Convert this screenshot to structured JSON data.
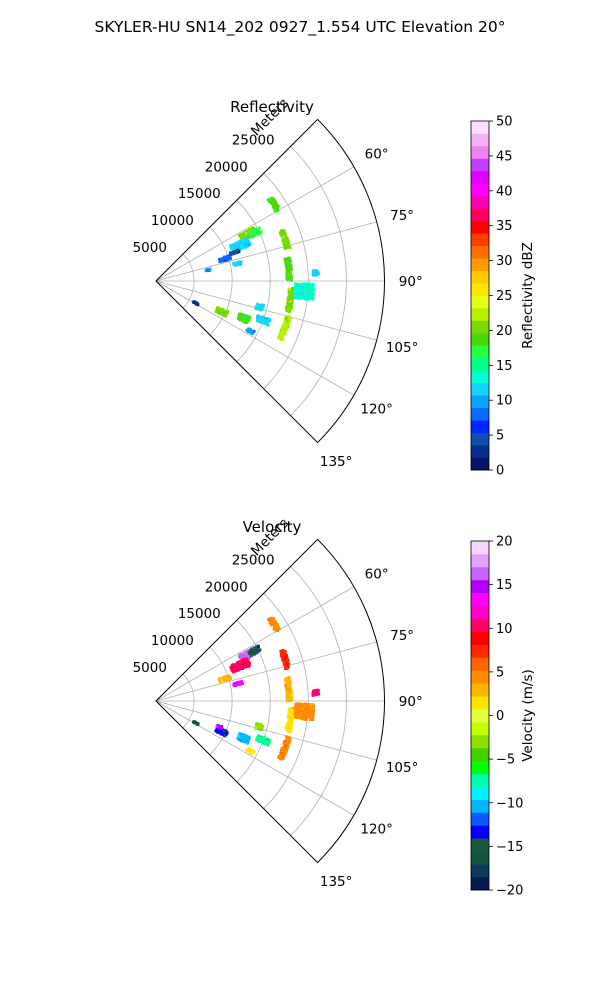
{
  "figure": {
    "title": "SKYLER-HU  SN14_202  0927_1.554 UTC Elevation 20°"
  },
  "chart_data": [
    {
      "type": "heatmap",
      "projection": "polar-sector",
      "title": "Reflectivity",
      "radial_label": "Meters",
      "azimuth_range_deg": [
        45,
        135
      ],
      "radial_range_m": [
        0,
        30000
      ],
      "radial_ticks": [
        5000,
        10000,
        15000,
        20000,
        25000
      ],
      "radial_tick_labels": [
        "5000",
        "10000",
        "15000",
        "20000",
        "25000"
      ],
      "angle_ticks_deg": [
        60,
        75,
        90,
        105,
        120,
        135
      ],
      "angle_tick_labels": [
        "60°",
        "75°",
        "90°",
        "105°",
        "120°",
        "135°"
      ],
      "grid": true,
      "colorbar": {
        "label": "Reflectivity dBZ",
        "min": 0,
        "max": 50,
        "ticks": [
          0,
          5,
          10,
          15,
          20,
          25,
          30,
          35,
          40,
          45,
          50
        ],
        "tick_labels": [
          "0",
          "5",
          "10",
          "15",
          "20",
          "25",
          "30",
          "35",
          "40",
          "45",
          "50"
        ],
        "colormap": "pyart_NWSRef"
      },
      "echoes": [
        {
          "r": 13500,
          "az": 63,
          "dr": 2200,
          "daz": 4,
          "value": 20
        },
        {
          "r": 12000,
          "az": 67,
          "dr": 2500,
          "daz": 5,
          "value": 12
        },
        {
          "r": 14500,
          "az": 64,
          "dr": 1500,
          "daz": 3,
          "value": 17
        },
        {
          "r": 9500,
          "az": 72,
          "dr": 1500,
          "daz": 3,
          "value": 8
        },
        {
          "r": 11000,
          "az": 70,
          "dr": 1200,
          "daz": 2,
          "value": 4
        },
        {
          "r": 11000,
          "az": 78,
          "dr": 1200,
          "daz": 2,
          "value": 12
        },
        {
          "r": 18500,
          "az": 57,
          "dr": 700,
          "daz": 6,
          "value": 18
        },
        {
          "r": 17800,
          "az": 72,
          "dr": 700,
          "daz": 8,
          "value": 20
        },
        {
          "r": 17500,
          "az": 85,
          "dr": 700,
          "daz": 10,
          "value": 18
        },
        {
          "r": 17800,
          "az": 98,
          "dr": 700,
          "daz": 10,
          "value": 20
        },
        {
          "r": 18000,
          "az": 110,
          "dr": 700,
          "daz": 10,
          "value": 22
        },
        {
          "r": 19500,
          "az": 94,
          "dr": 2500,
          "daz": 6,
          "value": 13
        },
        {
          "r": 21000,
          "az": 87,
          "dr": 800,
          "daz": 2,
          "value": 12
        },
        {
          "r": 14000,
          "az": 104,
          "dr": 1000,
          "daz": 3,
          "value": 12
        },
        {
          "r": 9500,
          "az": 115,
          "dr": 1500,
          "daz": 4,
          "value": 20
        },
        {
          "r": 12500,
          "az": 113,
          "dr": 1500,
          "daz": 4,
          "value": 18
        },
        {
          "r": 15000,
          "az": 110,
          "dr": 1800,
          "daz": 3,
          "value": 12
        },
        {
          "r": 14000,
          "az": 118,
          "dr": 1000,
          "daz": 2,
          "value": 10
        },
        {
          "r": 6000,
          "az": 119,
          "dr": 800,
          "daz": 2,
          "value": 2
        },
        {
          "r": 7000,
          "az": 78,
          "dr": 600,
          "daz": 2,
          "value": 10
        }
      ]
    },
    {
      "type": "heatmap",
      "projection": "polar-sector",
      "title": "Velocity",
      "radial_label": "Meters",
      "azimuth_range_deg": [
        45,
        135
      ],
      "radial_range_m": [
        0,
        30000
      ],
      "radial_ticks": [
        5000,
        10000,
        15000,
        20000,
        25000
      ],
      "radial_tick_labels": [
        "5000",
        "10000",
        "15000",
        "20000",
        "25000"
      ],
      "angle_ticks_deg": [
        60,
        75,
        90,
        105,
        120,
        135
      ],
      "angle_tick_labels": [
        "60°",
        "75°",
        "90°",
        "105°",
        "120°",
        "135°"
      ],
      "grid": true,
      "colorbar": {
        "label": "Velocity (m/s)",
        "min": -20,
        "max": 20,
        "ticks": [
          -20,
          -15,
          -10,
          -5,
          0,
          5,
          10,
          15,
          20
        ],
        "tick_labels": [
          "−20",
          "−15",
          "−10",
          "−5",
          "0",
          "5",
          "10",
          "15",
          "20"
        ],
        "colormap": "pyart_BuDRd18"
      },
      "echoes": [
        {
          "r": 13500,
          "az": 63,
          "dr": 2200,
          "daz": 4,
          "value": 16
        },
        {
          "r": 12000,
          "az": 67,
          "dr": 2500,
          "daz": 5,
          "value": 10
        },
        {
          "r": 14500,
          "az": 63,
          "dr": 1500,
          "daz": 3,
          "value": -15
        },
        {
          "r": 9500,
          "az": 72,
          "dr": 1500,
          "daz": 3,
          "value": 3
        },
        {
          "r": 11000,
          "az": 78,
          "dr": 1200,
          "daz": 2,
          "value": 14
        },
        {
          "r": 18500,
          "az": 57,
          "dr": 700,
          "daz": 6,
          "value": 5
        },
        {
          "r": 17800,
          "az": 72,
          "dr": 700,
          "daz": 8,
          "value": 8
        },
        {
          "r": 17500,
          "az": 85,
          "dr": 700,
          "daz": 10,
          "value": 3
        },
        {
          "r": 17800,
          "az": 98,
          "dr": 700,
          "daz": 10,
          "value": 2
        },
        {
          "r": 18000,
          "az": 110,
          "dr": 700,
          "daz": 10,
          "value": 5
        },
        {
          "r": 19500,
          "az": 94,
          "dr": 2500,
          "daz": 6,
          "value": 4
        },
        {
          "r": 21000,
          "az": 87,
          "dr": 800,
          "daz": 2,
          "value": 10
        },
        {
          "r": 14000,
          "az": 104,
          "dr": 1000,
          "daz": 3,
          "value": -3
        },
        {
          "r": 9500,
          "az": 115,
          "dr": 1500,
          "daz": 4,
          "value": -13
        },
        {
          "r": 12500,
          "az": 113,
          "dr": 1500,
          "daz": 4,
          "value": -10
        },
        {
          "r": 15000,
          "az": 110,
          "dr": 1800,
          "daz": 3,
          "value": -7
        },
        {
          "r": 14000,
          "az": 118,
          "dr": 1000,
          "daz": 2,
          "value": 1
        },
        {
          "r": 6000,
          "az": 119,
          "dr": 800,
          "daz": 2,
          "value": -16
        },
        {
          "r": 9000,
          "az": 112,
          "dr": 700,
          "daz": 2,
          "value": 15
        }
      ]
    }
  ]
}
